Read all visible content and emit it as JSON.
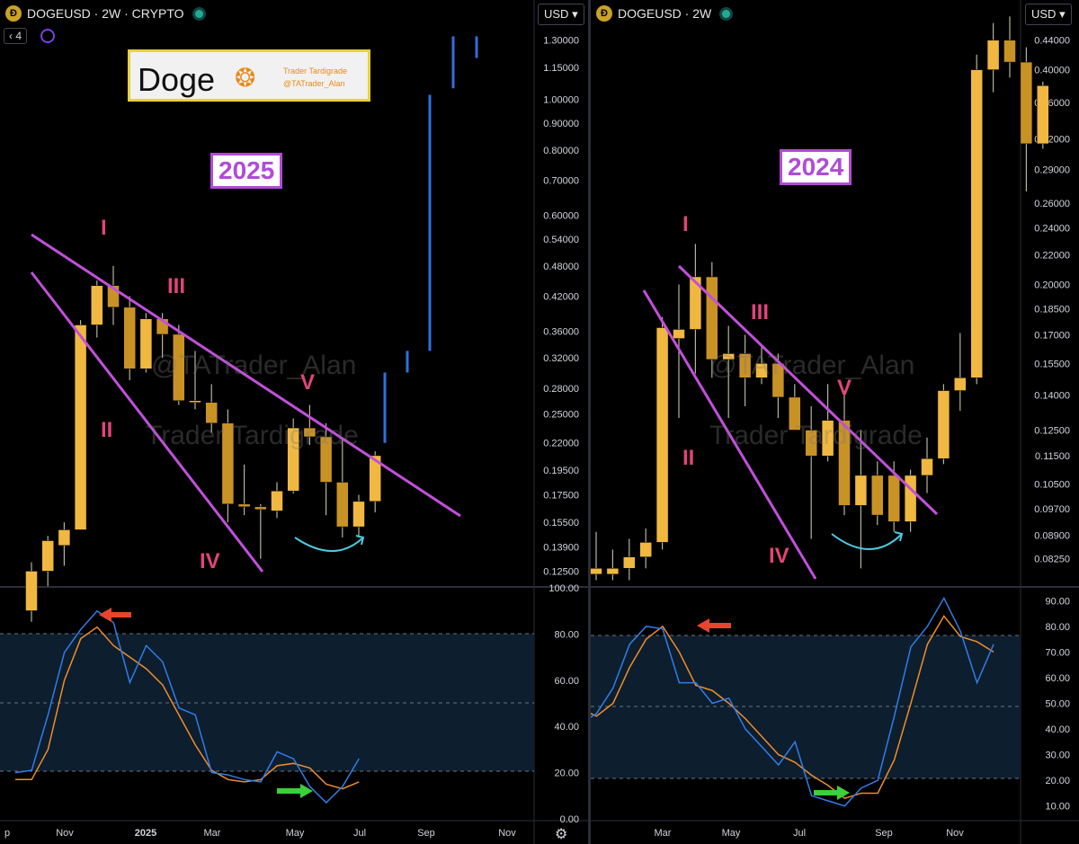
{
  "left": {
    "symbol_title": "DOGEUSD · 2W · CRYPTO",
    "currency": "USD",
    "indicator_count": "4",
    "logo": {
      "name": "Doge",
      "line1": "Trader Tardigrade",
      "line2": "@TATrader_Alan"
    },
    "year_label": "2025",
    "watermark1": "@TATrader_Alan",
    "watermark2": "Trader Tardigrade",
    "waves": {
      "I": "I",
      "II": "II",
      "III": "III",
      "IV": "IV",
      "V": "V"
    },
    "gear_icon": "gear-icon"
  },
  "right": {
    "symbol_title": "DOGEUSD · 2W",
    "currency": "USD",
    "year_label": "2024",
    "watermark1": "@TATrader_Alan",
    "watermark2": "Trader Tardigrade",
    "waves": {
      "I": "I",
      "II": "II",
      "III": "III",
      "IV": "IV",
      "V": "V"
    }
  },
  "chart_data": [
    {
      "type": "candlestick",
      "title": "DOGEUSD · 2W · CRYPTO",
      "price_scale": "log",
      "ylim": [
        0.118,
        1.42
      ],
      "y_ticks": [
        "1.30000",
        "1.15000",
        "1.00000",
        "0.90000",
        "0.80000",
        "0.70000",
        "0.60000",
        "0.54000",
        "0.48000",
        "0.42000",
        "0.36000",
        "0.32000",
        "0.28000",
        "0.25000",
        "0.22000",
        "0.19500",
        "0.17500",
        "0.15500",
        "0.13900",
        "0.12500"
      ],
      "x_ticks": [
        "p",
        "Nov",
        "2025",
        "Mar",
        "May",
        "Jul",
        "Sep",
        "Nov"
      ],
      "candles": [
        {
          "o": 0.105,
          "h": 0.13,
          "l": 0.1,
          "c": 0.125
        },
        {
          "o": 0.125,
          "h": 0.146,
          "l": 0.117,
          "c": 0.143
        },
        {
          "o": 0.14,
          "h": 0.155,
          "l": 0.128,
          "c": 0.15
        },
        {
          "o": 0.15,
          "h": 0.378,
          "l": 0.15,
          "c": 0.37
        },
        {
          "o": 0.37,
          "h": 0.45,
          "l": 0.35,
          "c": 0.44
        },
        {
          "o": 0.44,
          "h": 0.48,
          "l": 0.37,
          "c": 0.4
        },
        {
          "o": 0.4,
          "h": 0.42,
          "l": 0.29,
          "c": 0.305
        },
        {
          "o": 0.305,
          "h": 0.39,
          "l": 0.3,
          "c": 0.38
        },
        {
          "o": 0.38,
          "h": 0.39,
          "l": 0.32,
          "c": 0.355
        },
        {
          "o": 0.355,
          "h": 0.37,
          "l": 0.26,
          "c": 0.265
        },
        {
          "o": 0.265,
          "h": 0.33,
          "l": 0.255,
          "c": 0.265
        },
        {
          "o": 0.263,
          "h": 0.285,
          "l": 0.23,
          "c": 0.24
        },
        {
          "o": 0.24,
          "h": 0.255,
          "l": 0.155,
          "c": 0.168
        },
        {
          "o": 0.168,
          "h": 0.2,
          "l": 0.16,
          "c": 0.166
        },
        {
          "o": 0.166,
          "h": 0.168,
          "l": 0.132,
          "c": 0.164
        },
        {
          "o": 0.163,
          "h": 0.185,
          "l": 0.158,
          "c": 0.178
        },
        {
          "o": 0.178,
          "h": 0.245,
          "l": 0.176,
          "c": 0.235
        },
        {
          "o": 0.235,
          "h": 0.26,
          "l": 0.218,
          "c": 0.226
        },
        {
          "o": 0.226,
          "h": 0.24,
          "l": 0.16,
          "c": 0.185
        },
        {
          "o": 0.185,
          "h": 0.225,
          "l": 0.145,
          "c": 0.152
        },
        {
          "o": 0.152,
          "h": 0.175,
          "l": 0.145,
          "c": 0.17
        },
        {
          "o": 0.17,
          "h": 0.212,
          "l": 0.162,
          "c": 0.208
        }
      ],
      "projection_bars": [
        {
          "low": 0.22,
          "high": 0.3
        },
        {
          "low": 0.3,
          "high": 0.33
        },
        {
          "low": 0.33,
          "high": 1.02
        },
        {
          "low": 1.05,
          "high": 1.32
        },
        {
          "low": 1.2,
          "high": 1.32
        }
      ],
      "oscillator": {
        "ylim": [
          0,
          100
        ],
        "y_ticks": [
          "100.00",
          "80.00",
          "60.00",
          "40.00",
          "20.00",
          "0.00"
        ],
        "bands": [
          20,
          50,
          80
        ],
        "k": [
          20,
          21,
          45,
          72,
          82,
          90,
          85,
          59,
          75,
          68,
          48,
          45,
          20,
          19,
          17,
          16,
          29,
          26,
          14,
          7,
          14,
          26
        ],
        "d": [
          17,
          17,
          30,
          60,
          78,
          83,
          75,
          70,
          65,
          58,
          45,
          32,
          21,
          17,
          16,
          17,
          23,
          24,
          22,
          15,
          13,
          16
        ]
      }
    },
    {
      "type": "candlestick",
      "title": "DOGEUSD · 2W",
      "price_scale": "log",
      "ylim": [
        0.076,
        0.47
      ],
      "y_ticks": [
        "0.44000",
        "0.40000",
        "0.36000",
        "0.32000",
        "0.29000",
        "0.26000",
        "0.24000",
        "0.22000",
        "0.20000",
        "0.18500",
        "0.17000",
        "0.15500",
        "0.14000",
        "0.12500",
        "0.11500",
        "0.10500",
        "0.09700",
        "0.08900",
        "0.08250"
      ],
      "x_ticks": [
        "Mar",
        "May",
        "Jul",
        "Sep",
        "Nov"
      ],
      "candles": [
        {
          "o": 0.0785,
          "h": 0.09,
          "l": 0.077,
          "c": 0.08
        },
        {
          "o": 0.0785,
          "h": 0.085,
          "l": 0.077,
          "c": 0.08
        },
        {
          "o": 0.08,
          "h": 0.088,
          "l": 0.077,
          "c": 0.083
        },
        {
          "o": 0.083,
          "h": 0.091,
          "l": 0.08,
          "c": 0.087
        },
        {
          "o": 0.087,
          "h": 0.18,
          "l": 0.085,
          "c": 0.174
        },
        {
          "o": 0.168,
          "h": 0.2,
          "l": 0.13,
          "c": 0.173
        },
        {
          "o": 0.173,
          "h": 0.228,
          "l": 0.15,
          "c": 0.205
        },
        {
          "o": 0.205,
          "h": 0.215,
          "l": 0.148,
          "c": 0.157
        },
        {
          "o": 0.157,
          "h": 0.175,
          "l": 0.13,
          "c": 0.16
        },
        {
          "o": 0.16,
          "h": 0.17,
          "l": 0.135,
          "c": 0.148
        },
        {
          "o": 0.148,
          "h": 0.165,
          "l": 0.145,
          "c": 0.155
        },
        {
          "o": 0.155,
          "h": 0.16,
          "l": 0.13,
          "c": 0.139
        },
        {
          "o": 0.139,
          "h": 0.145,
          "l": 0.125,
          "c": 0.125
        },
        {
          "o": 0.125,
          "h": 0.135,
          "l": 0.088,
          "c": 0.115
        },
        {
          "o": 0.115,
          "h": 0.145,
          "l": 0.113,
          "c": 0.129
        },
        {
          "o": 0.129,
          "h": 0.142,
          "l": 0.095,
          "c": 0.098
        },
        {
          "o": 0.098,
          "h": 0.125,
          "l": 0.08,
          "c": 0.108
        },
        {
          "o": 0.108,
          "h": 0.113,
          "l": 0.092,
          "c": 0.095
        },
        {
          "o": 0.108,
          "h": 0.113,
          "l": 0.09,
          "c": 0.093
        },
        {
          "o": 0.093,
          "h": 0.11,
          "l": 0.09,
          "c": 0.108
        },
        {
          "o": 0.108,
          "h": 0.122,
          "l": 0.102,
          "c": 0.114
        },
        {
          "o": 0.114,
          "h": 0.145,
          "l": 0.112,
          "c": 0.142
        },
        {
          "o": 0.142,
          "h": 0.171,
          "l": 0.133,
          "c": 0.148
        },
        {
          "o": 0.148,
          "h": 0.42,
          "l": 0.145,
          "c": 0.4
        },
        {
          "o": 0.4,
          "h": 0.465,
          "l": 0.372,
          "c": 0.44
        },
        {
          "o": 0.44,
          "h": 0.475,
          "l": 0.39,
          "c": 0.41
        },
        {
          "o": 0.41,
          "h": 0.43,
          "l": 0.27,
          "c": 0.315
        },
        {
          "o": 0.315,
          "h": 0.385,
          "l": 0.31,
          "c": 0.38
        }
      ],
      "oscillator": {
        "ylim": [
          5,
          95
        ],
        "y_ticks": [
          "90.00",
          "80.00",
          "70.00",
          "60.00",
          "50.00",
          "40.00",
          "30.00",
          "20.00",
          "10.00"
        ],
        "bands": [
          20,
          50,
          80
        ],
        "k": [
          42,
          46,
          56,
          73,
          80,
          79,
          58,
          58,
          50,
          52,
          40,
          33,
          26,
          35,
          14,
          12,
          10,
          17,
          20,
          45,
          72,
          80,
          91,
          78,
          58,
          73
        ],
        "d": [
          48,
          45,
          50,
          64,
          75,
          80,
          70,
          57,
          55,
          50,
          44,
          37,
          30,
          27,
          22,
          18,
          13,
          15,
          15,
          28,
          50,
          73,
          84,
          76,
          74,
          70
        ]
      }
    }
  ]
}
